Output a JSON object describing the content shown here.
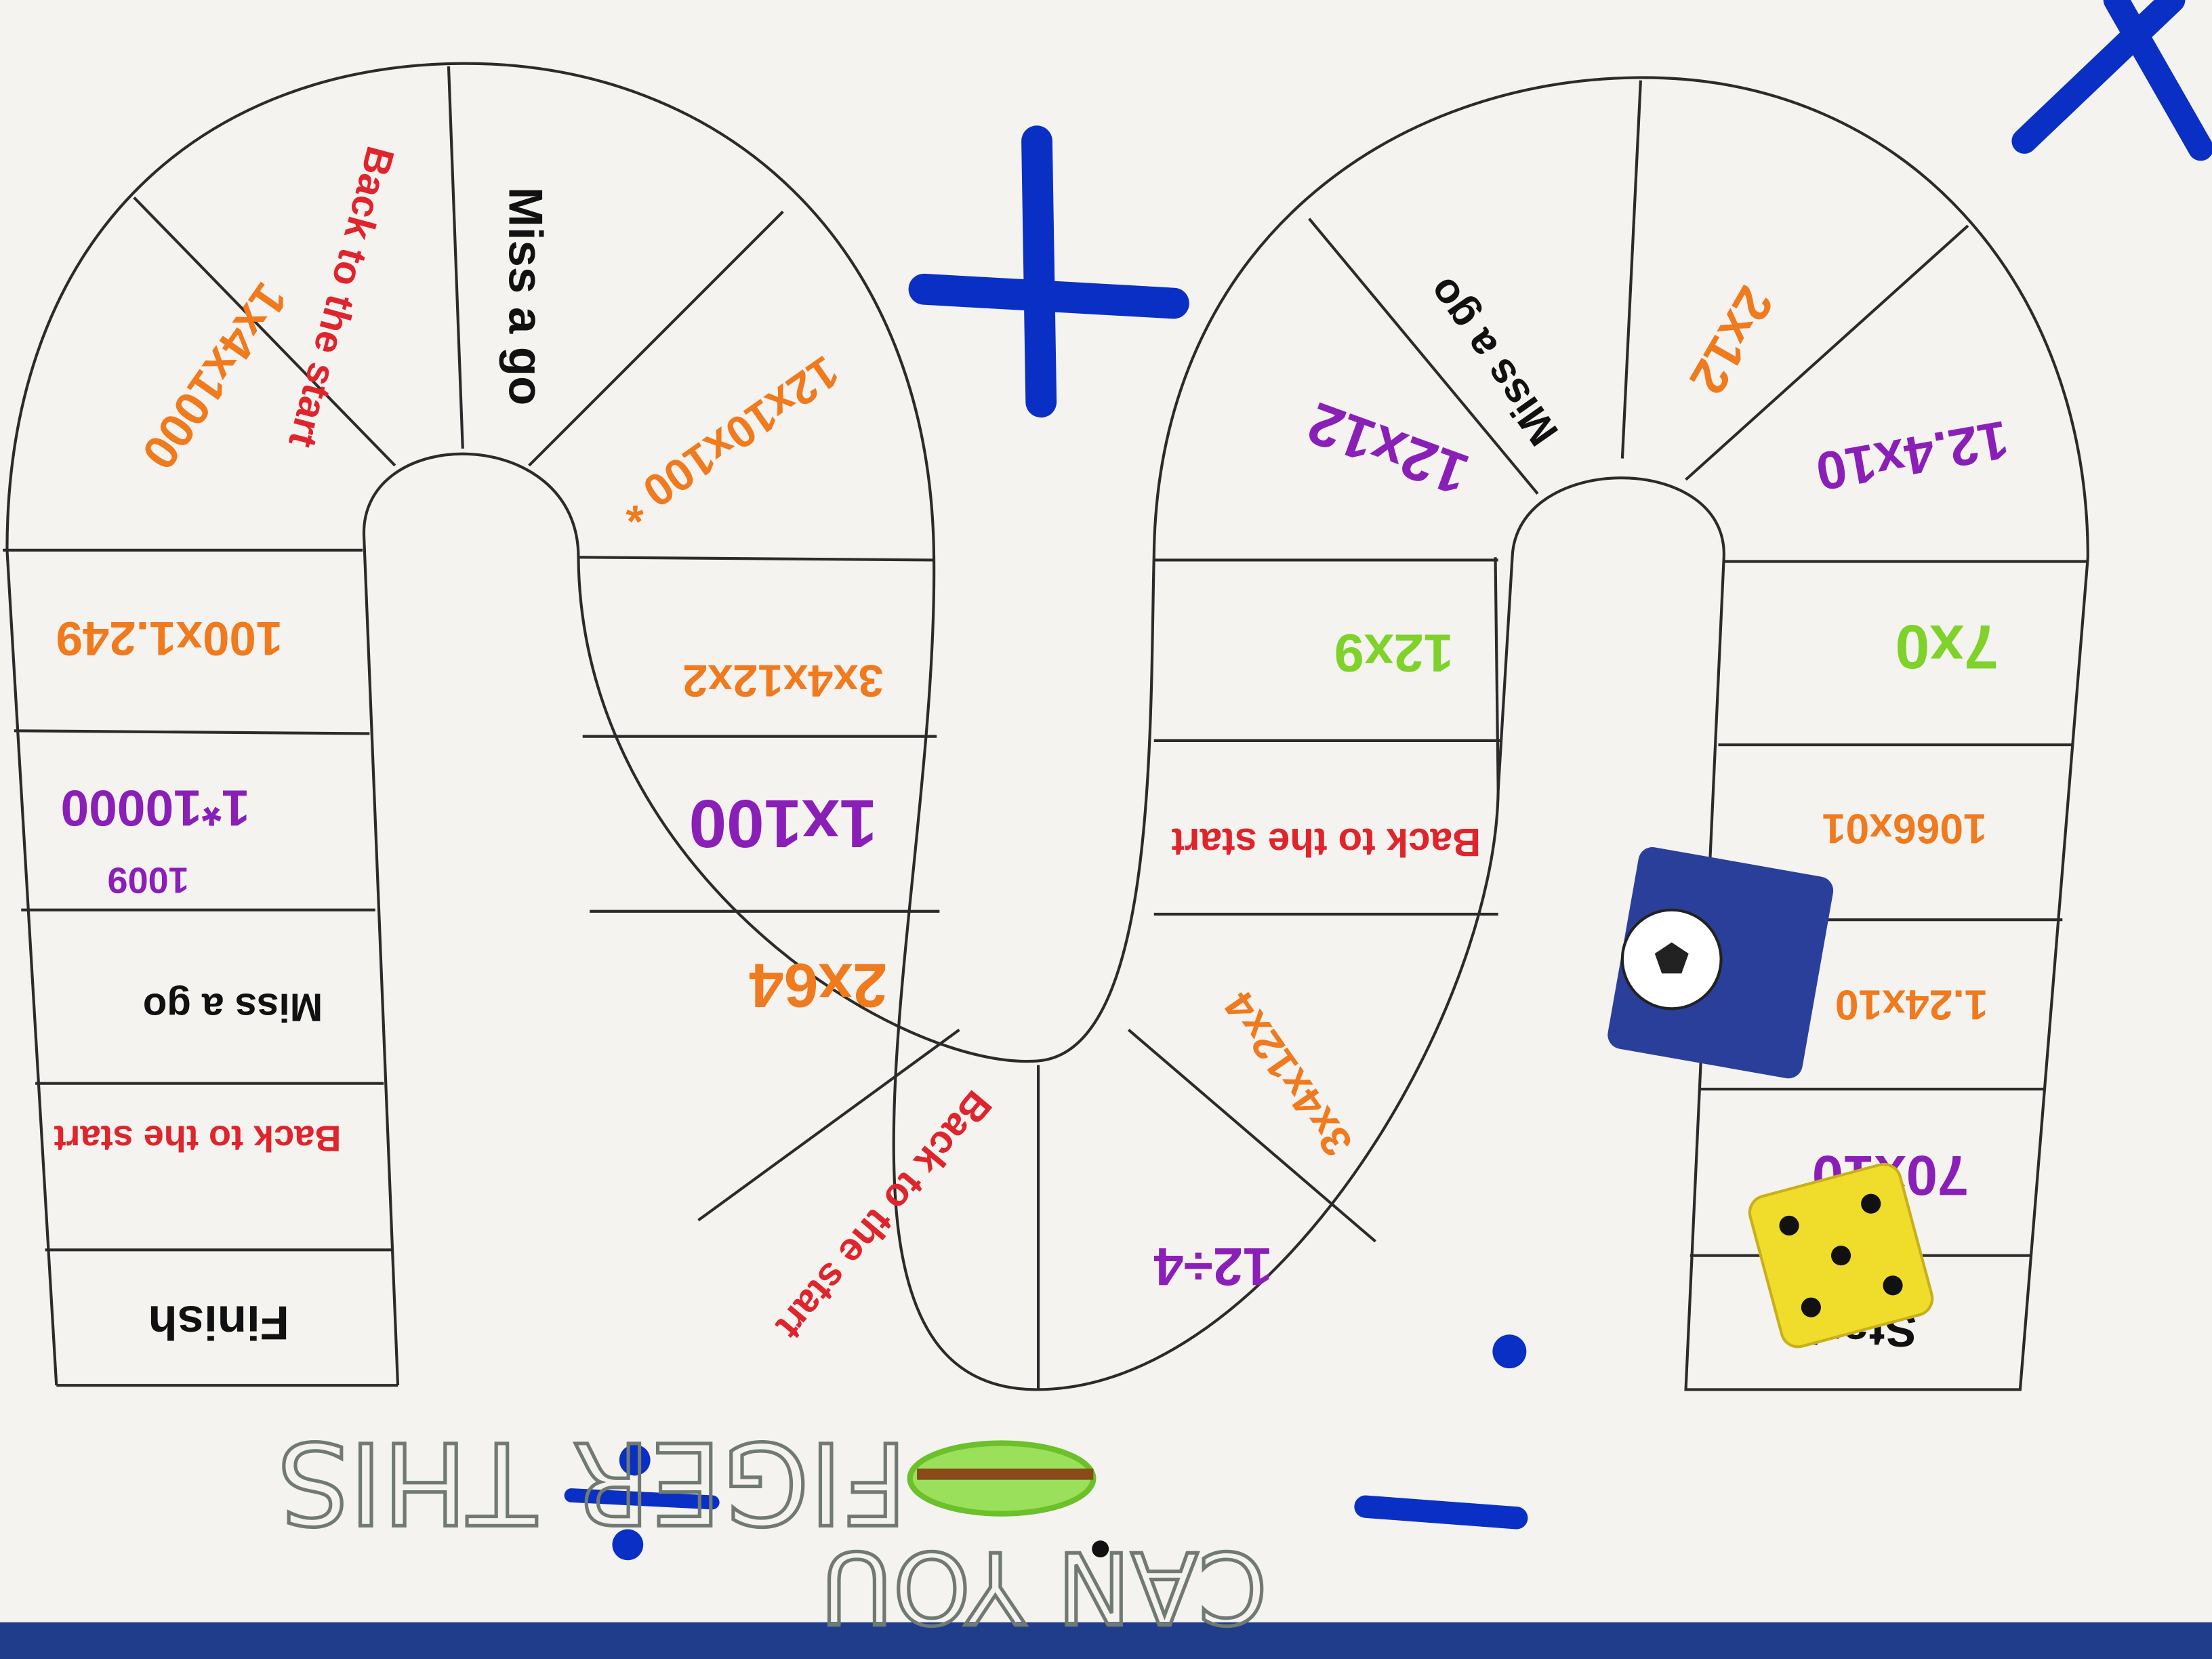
{
  "board": {
    "orientation": "upside-down",
    "colors": {
      "paper": "#f4f3f0",
      "lines": "#2b2b2b",
      "orange": "#f07a1e",
      "purple": "#8a1fb8",
      "red": "#e0242c",
      "green": "#7fd22a",
      "black": "#111111",
      "blue_marker": "#0a2fc4",
      "pencil": "#707a72"
    },
    "cells": [
      {
        "text": "Finish",
        "color": "black"
      },
      {
        "text": "Back to the start",
        "color": "red"
      },
      {
        "text": "Miss a go",
        "color": "black"
      },
      {
        "text": "1009",
        "color": "purple"
      },
      {
        "text": "1*10000",
        "color": "purple"
      },
      {
        "text": "100x1.249",
        "color": "orange"
      },
      {
        "text": "1x4x1000",
        "color": "orange"
      },
      {
        "text": "Back to the start",
        "color": "red"
      },
      {
        "text": "Miss a go",
        "color": "black"
      },
      {
        "text": "12x10x100 *",
        "color": "orange"
      },
      {
        "text": "3x4x12x2",
        "color": "orange"
      },
      {
        "text": "1x100",
        "color": "purple"
      },
      {
        "text": "2x64",
        "color": "orange"
      },
      {
        "text": "Back to the start",
        "color": "red"
      },
      {
        "text": "12÷4",
        "color": "purple"
      },
      {
        "text": "3x4x12x4",
        "color": "orange"
      },
      {
        "text": "Back to the start",
        "color": "red"
      },
      {
        "text": "12x9",
        "color": "green"
      },
      {
        "text": "12x12",
        "color": "purple"
      },
      {
        "text": "Miss a go",
        "color": "black"
      },
      {
        "text": "2x12",
        "color": "orange"
      },
      {
        "text": "12.4x10",
        "color": "purple"
      },
      {
        "text": "7x0",
        "color": "green"
      },
      {
        "text": "1066x01",
        "color": "orange"
      },
      {
        "text": "1.24x10",
        "color": "orange"
      },
      {
        "text": "70x10",
        "color": "purple"
      },
      {
        "text": "Start",
        "color": "black"
      }
    ],
    "symbols": {
      "plus": "+",
      "minus": "−",
      "divide": "÷",
      "times": "×"
    },
    "title_line1": "CAN YOU",
    "title_line2": "FIGER THIS",
    "pieces": [
      {
        "name": "football-counter"
      },
      {
        "name": "yellow-die",
        "value": 5
      }
    ]
  }
}
